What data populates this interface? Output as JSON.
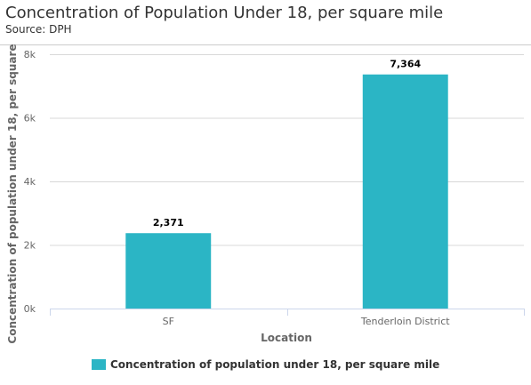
{
  "header": {
    "title": "Concentration of Population Under 18, per square mile",
    "subtitle": "Source: DPH"
  },
  "chart_data": {
    "type": "bar",
    "title": "Concentration of Population Under 18, per square mile",
    "subtitle": "Source: DPH",
    "categories": [
      "SF",
      "Tenderloin District"
    ],
    "series": [
      {
        "name": "Concentration of population under 18, per square mile",
        "values": [
          2371,
          7364
        ],
        "data_labels": [
          "2,371",
          "7,364"
        ],
        "color": "#2bb5c5"
      }
    ],
    "xlabel": "Location",
    "ylabel": "Concentration of population under 18, per square",
    "ylim": [
      0,
      8000
    ],
    "yticks": [
      0,
      2000,
      4000,
      6000,
      8000
    ],
    "ytick_labels": [
      "0k",
      "2k",
      "4k",
      "6k",
      "8k"
    ],
    "grid": true,
    "legend": "bottom-center"
  },
  "colors": {
    "bar": "#2bb5c5",
    "grid": "#d8d8d8",
    "axis": "#ccd6eb"
  }
}
